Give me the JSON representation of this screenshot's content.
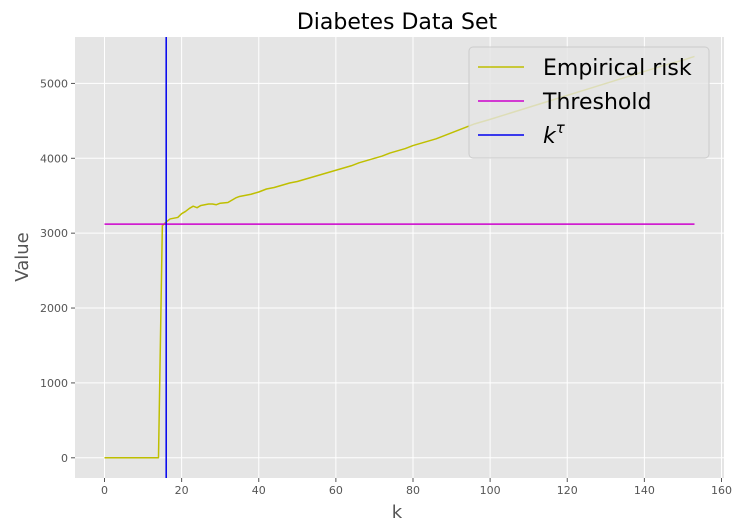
{
  "chart_data": {
    "type": "line",
    "title": "Diabetes Data Set",
    "xlabel": "k",
    "ylabel": "Value",
    "xlim": [
      -7.65,
      160.65
    ],
    "ylim": [
      -270,
      5620
    ],
    "xticks": [
      0,
      20,
      40,
      60,
      80,
      100,
      120,
      140,
      160
    ],
    "yticks": [
      0,
      1000,
      2000,
      3000,
      4000,
      5000
    ],
    "grid": true,
    "legend_position": "top-right",
    "series": [
      {
        "name": "Empirical risk",
        "kind": "line",
        "color": "#bfbf00",
        "x": [
          0,
          14,
          15,
          16,
          17,
          18,
          19,
          20,
          21,
          22,
          23,
          24,
          25,
          26,
          27,
          28,
          29,
          30,
          32,
          34,
          35,
          36,
          38,
          40,
          42,
          44,
          46,
          48,
          50,
          52,
          54,
          56,
          58,
          60,
          62,
          64,
          66,
          68,
          70,
          72,
          74,
          76,
          78,
          80,
          82,
          84,
          86,
          88,
          90,
          92,
          94,
          96,
          98,
          100,
          105,
          110,
          115,
          120,
          125,
          130,
          135,
          140,
          145,
          150,
          153
        ],
        "y": [
          0,
          0,
          3100,
          3150,
          3190,
          3200,
          3210,
          3260,
          3290,
          3330,
          3360,
          3340,
          3370,
          3380,
          3390,
          3390,
          3380,
          3400,
          3410,
          3470,
          3490,
          3500,
          3520,
          3550,
          3590,
          3610,
          3640,
          3670,
          3690,
          3720,
          3750,
          3780,
          3810,
          3840,
          3870,
          3900,
          3940,
          3970,
          4000,
          4030,
          4070,
          4100,
          4130,
          4170,
          4200,
          4230,
          4260,
          4300,
          4340,
          4380,
          4420,
          4460,
          4490,
          4520,
          4600,
          4680,
          4760,
          4840,
          4920,
          5000,
          5080,
          5160,
          5240,
          5310,
          5360
        ]
      },
      {
        "name": "Threshold",
        "kind": "hline",
        "color": "#cc00cc",
        "x": [
          0,
          153
        ],
        "y": [
          3120,
          3120
        ]
      },
      {
        "name": "k^τ",
        "kind": "vline",
        "color": "#0000ee",
        "x": 16
      }
    ]
  },
  "legend": {
    "items": [
      {
        "label": "Empirical risk",
        "color": "#bfbf00"
      },
      {
        "label": "Threshold",
        "color": "#cc00cc"
      },
      {
        "label_base": "k",
        "label_sup": "τ",
        "color": "#0000ee"
      }
    ]
  }
}
